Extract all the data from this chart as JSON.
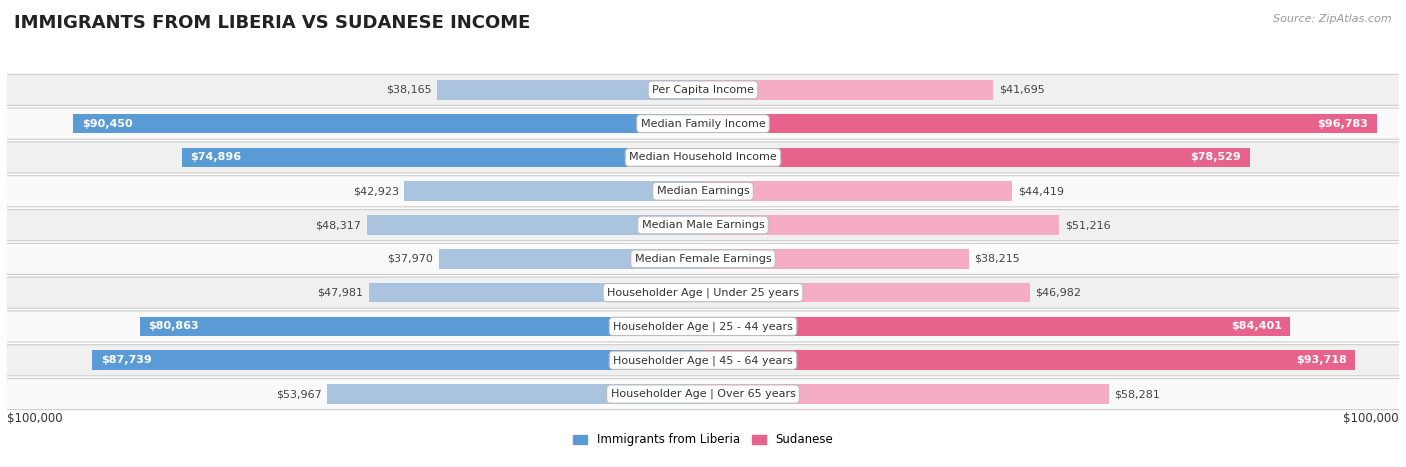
{
  "title": "IMMIGRANTS FROM LIBERIA VS SUDANESE INCOME",
  "source": "Source: ZipAtlas.com",
  "categories": [
    "Per Capita Income",
    "Median Family Income",
    "Median Household Income",
    "Median Earnings",
    "Median Male Earnings",
    "Median Female Earnings",
    "Householder Age | Under 25 years",
    "Householder Age | 25 - 44 years",
    "Householder Age | 45 - 64 years",
    "Householder Age | Over 65 years"
  ],
  "liberia_values": [
    38165,
    90450,
    74896,
    42923,
    48317,
    37970,
    47981,
    80863,
    87739,
    53967
  ],
  "sudanese_values": [
    41695,
    96783,
    78529,
    44419,
    51216,
    38215,
    46982,
    84401,
    93718,
    58281
  ],
  "liberia_color_light": "#aac4e0",
  "liberia_color_dark": "#5b9bd5",
  "sudanese_color_light": "#f4adc4",
  "sudanese_color_dark": "#e8638c",
  "liberia_label": "Immigrants from Liberia",
  "sudanese_label": "Sudanese",
  "max_value": 100000,
  "xlabel_left": "$100,000",
  "xlabel_right": "$100,000",
  "row_bg_odd": "#f0f0f0",
  "row_bg_even": "#fafafa",
  "bar_height": 0.58,
  "title_fontsize": 13,
  "source_fontsize": 8,
  "label_fontsize": 8.5,
  "value_fontsize": 8,
  "category_fontsize": 8,
  "dark_threshold": 0.6
}
